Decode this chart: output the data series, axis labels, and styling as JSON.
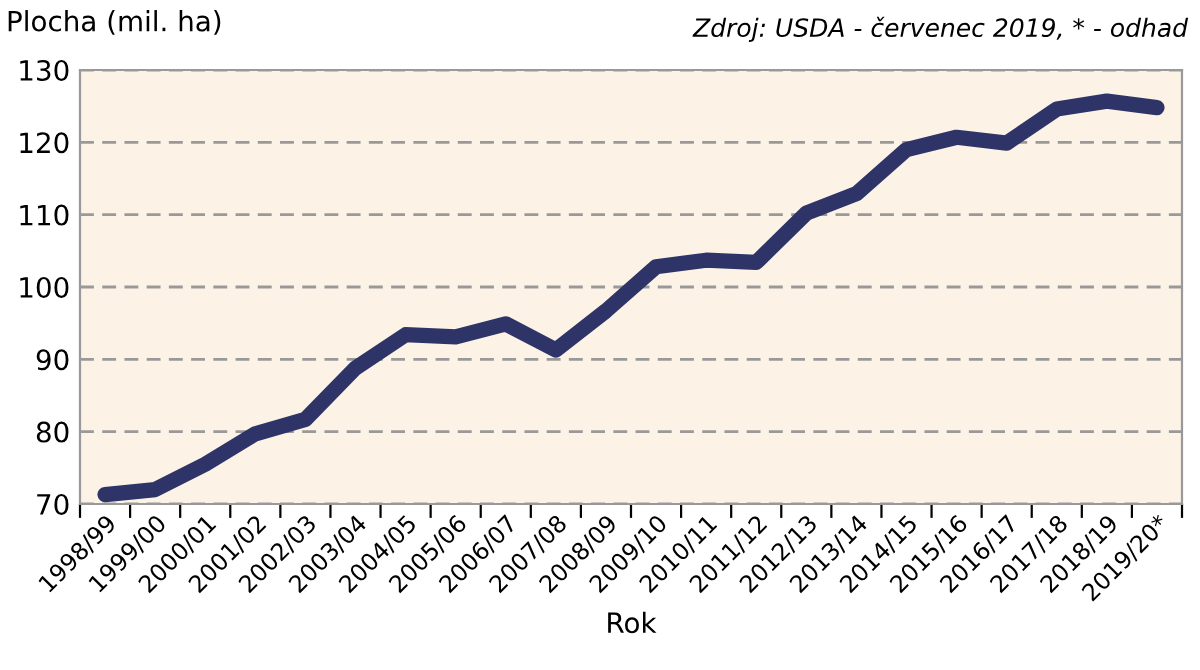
{
  "chart_data": {
    "type": "line",
    "ylabel": "Plocha (mil. ha)",
    "xlabel": "Rok",
    "annotations": [
      "Zdroj: USDA - červenec 2019, * - odhad"
    ],
    "categories": [
      "1998/99",
      "1999/00",
      "2000/01",
      "2001/02",
      "2002/03",
      "2003/04",
      "2004/05",
      "2005/06",
      "2006/07",
      "2007/08",
      "2008/09",
      "2009/10",
      "2010/11",
      "2011/12",
      "2012/13",
      "2013/14",
      "2014/15",
      "2015/16",
      "2016/17",
      "2017/18",
      "2018/19",
      "2019/20*"
    ],
    "series": [
      {
        "color": "#2e3467",
        "values": [
          71.3,
          72.0,
          75.5,
          79.7,
          81.7,
          88.8,
          93.4,
          93.1,
          94.9,
          91.3,
          96.7,
          102.8,
          103.7,
          103.4,
          110.2,
          112.9,
          119.0,
          120.7,
          119.9,
          124.6,
          125.7,
          124.8
        ]
      }
    ],
    "ylim": [
      70,
      130
    ],
    "yticks": [
      70,
      80,
      90,
      100,
      110,
      120,
      130
    ],
    "grid": "y",
    "legend": false,
    "marker": "none",
    "line_style": "solid"
  }
}
